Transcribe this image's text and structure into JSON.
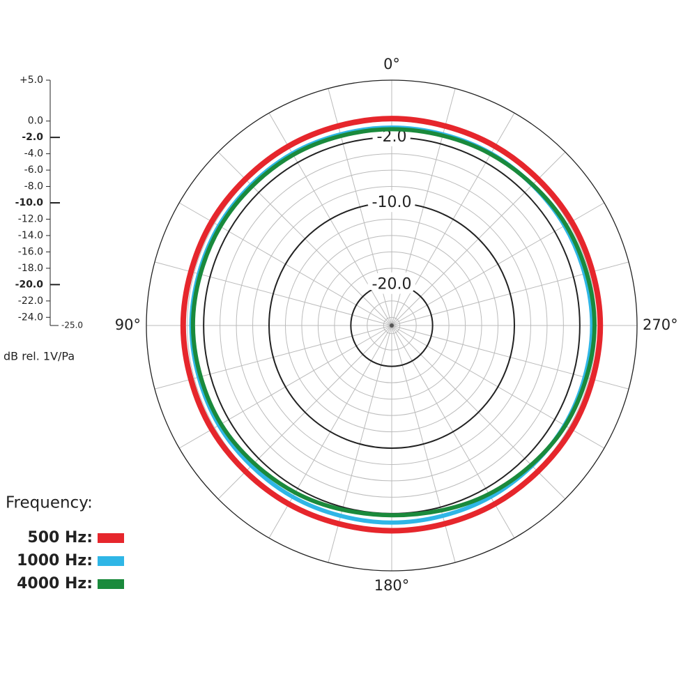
{
  "chart_data": {
    "type": "polar",
    "y_label": "dB rel. 1V/Pa",
    "legend_title": "Frequency:",
    "ylim": [
      -25,
      5
    ],
    "yticks": [
      {
        "value": 5,
        "label": "+5.0"
      },
      {
        "value": 0,
        "label": "0.0"
      },
      {
        "value": -2,
        "label": "-2.0"
      },
      {
        "value": -4,
        "label": "-4.0"
      },
      {
        "value": -6,
        "label": "-6.0"
      },
      {
        "value": -8,
        "label": "-8.0"
      },
      {
        "value": -10,
        "label": "-10.0"
      },
      {
        "value": -12,
        "label": "-12.0"
      },
      {
        "value": -14,
        "label": "-14.0"
      },
      {
        "value": -16,
        "label": "-16.0"
      },
      {
        "value": -18,
        "label": "-18.0"
      },
      {
        "value": -20,
        "label": "-20.0"
      },
      {
        "value": -22,
        "label": "-22.0"
      },
      {
        "value": -24,
        "label": "-24.0"
      },
      {
        "value": -25,
        "label": "-25.0"
      }
    ],
    "highlight_yticks": [
      -2,
      -10,
      -20
    ],
    "xticks": [
      {
        "value": 0,
        "label": "0°"
      },
      {
        "value": 90,
        "label": "90°"
      },
      {
        "value": 180,
        "label": "180°"
      },
      {
        "value": 270,
        "label": "270°"
      }
    ],
    "xgrid": [
      0,
      15,
      30,
      45,
      60,
      75,
      90,
      105,
      120,
      135,
      150,
      165,
      180,
      195,
      210,
      225,
      240,
      255,
      270,
      285,
      300,
      315,
      330,
      345
    ],
    "theta_zero": "top",
    "theta_direction": "counterclockwise",
    "x": [
      0,
      30,
      60,
      90,
      120,
      150,
      180,
      210,
      240,
      270,
      300,
      330
    ],
    "series": [
      {
        "name": "500 Hz:",
        "color": "#e6262c",
        "values": [
          0.3,
          0.3,
          0.4,
          0.5,
          0.4,
          0.2,
          0.1,
          0.2,
          0.4,
          0.5,
          0.4,
          0.3
        ]
      },
      {
        "name": "1000 Hz:",
        "color": "#2fb6e6",
        "values": [
          -0.8,
          -0.7,
          -0.6,
          -0.5,
          -0.6,
          -0.8,
          -0.9,
          -0.8,
          -0.6,
          -0.5,
          -0.6,
          -0.7
        ]
      },
      {
        "name": "4000 Hz:",
        "color": "#1a8a3c",
        "values": [
          -1.0,
          -0.9,
          -0.8,
          -0.7,
          -0.9,
          -1.4,
          -1.8,
          -1.2,
          -0.5,
          -0.2,
          -0.4,
          -0.8
        ]
      }
    ]
  }
}
